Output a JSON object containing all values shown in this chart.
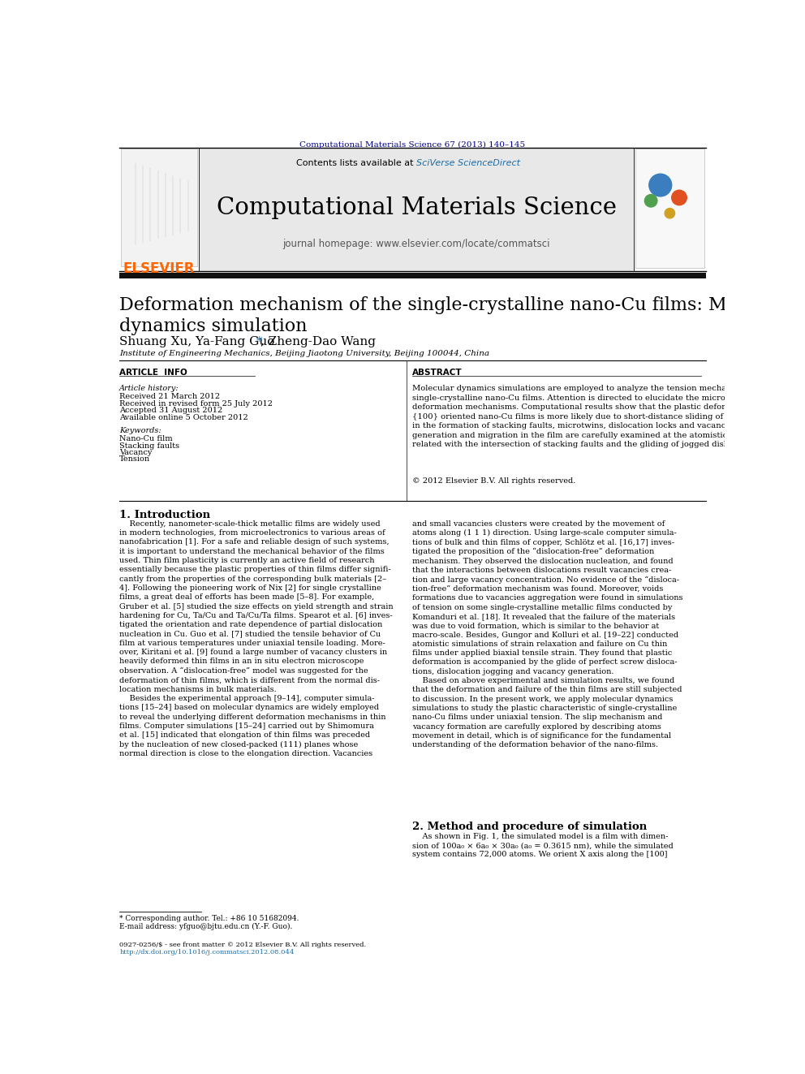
{
  "page_bg": "#ffffff",
  "top_journal_ref": "Computational Materials Science 67 (2013) 140–145",
  "top_journal_ref_color": "#00008B",
  "header_bg": "#e8e8e8",
  "header_contents_text": "Contents lists available at ",
  "header_sciverse": "SciVerse ScienceDirect",
  "header_sciverse_color": "#1a6ca8",
  "header_journal_title": "Computational Materials Science",
  "header_homepage_text": "journal homepage: www.elsevier.com/locate/commatsci",
  "article_title": "Deformation mechanism of the single-crystalline nano-Cu films: Molecular\ndynamics simulation",
  "affiliation": "Institute of Engineering Mechanics, Beijing Jiaotong University, Beijing 100044, China",
  "article_info_label": "ARTICLE  INFO",
  "abstract_label": "ABSTRACT",
  "article_history_label": "Article history:",
  "received_1": "Received 21 March 2012",
  "received_revised": "Received in revised form 25 July 2012",
  "accepted": "Accepted 31 August 2012",
  "available": "Available online 5 October 2012",
  "keywords_label": "Keywords:",
  "keyword_1": "Nano-Cu film",
  "keyword_2": "Stacking faults",
  "keyword_3": "Vacancy",
  "keyword_4": "Tension",
  "abstract_text": "Molecular dynamics simulations are employed to analyze the tension mechanical properties of\nsingle-crystalline nano-Cu films. Attention is directed to elucidate the microstructure evolution and\ndeformation mechanisms. Computational results show that the plastic deformation mechanism of the\n{100} oriented nano-Cu films is more likely due to short-distance sliding of the atoms, which results\nin the formation of stacking faults, microtwins, dislocation locks and vacancies. In particular, vacancy\ngeneration and migration in the film are carefully examined at the atomistic scale, which is closely\nrelated with the intersection of stacking faults and the gliding of jogged dislocations.\n© 2012 Elsevier B.V. All rights reserved.",
  "section1_title": "1. Introduction",
  "section1_col1": "    Recently, nanometer-scale-thick metallic films are widely used\nin modern technologies, from microelectronics to various areas of\nnanofabrication [1]. For a safe and reliable design of such systems,\nit is important to understand the mechanical behavior of the films\nused. Thin film plasticity is currently an active field of research\nessentially because the plastic properties of thin films differ signifi-\ncantly from the properties of the corresponding bulk materials [2–\n4]. Following the pioneering work of Nix [2] for single crystalline\nfilms, a great deal of efforts has been made [5–8]. For example,\nGruber et al. [5] studied the size effects on yield strength and strain\nhardening for Cu, Ta/Cu and Ta/Cu/Ta films. Spearot et al. [6] inves-\ntigated the orientation and rate dependence of partial dislocation\nnucleation in Cu. Guo et al. [7] studied the tensile behavior of Cu\nfilm at various temperatures under uniaxial tensile loading. More-\nover, Kiritani et al. [9] found a large number of vacancy clusters in\nheavily deformed thin films in an in situ electron microscope\nobservation. A “dislocation-free” model was suggested for the\ndeformation of thin films, which is different from the normal dis-\nlocation mechanisms in bulk materials.\n    Besides the experimental approach [9–14], computer simula-\ntions [15–24] based on molecular dynamics are widely employed\nto reveal the underlying different deformation mechanisms in thin\nfilms. Computer simulations [15–24] carried out by Shimomura\net al. [15] indicated that elongation of thin films was preceded\nby the nucleation of new closed-packed (111) planes whose\nnormal direction is close to the elongation direction. Vacancies",
  "section1_col2": "and small vacancies clusters were created by the movement of\natoms along (1 1 1) direction. Using large-scale computer simula-\ntions of bulk and thin films of copper, Schlötz et al. [16,17] inves-\ntigated the proposition of the “dislocation-free” deformation\nmechanism. They observed the dislocation nucleation, and found\nthat the interactions between dislocations result vacancies crea-\ntion and large vacancy concentration. No evidence of the “disloca-\ntion-free” deformation mechanism was found. Moreover, voids\nformations due to vacancies aggregation were found in simulations\nof tension on some single-crystalline metallic films conducted by\nKomanduri et al. [18]. It revealed that the failure of the materials\nwas due to void formation, which is similar to the behavior at\nmacro-scale. Besides, Gungor and Kolluri et al. [19–22] conducted\natomistic simulations of strain relaxation and failure on Cu thin\nfilms under applied biaxial tensile strain. They found that plastic\ndeformation is accompanied by the glide of perfect screw disloca-\ntions, dislocation jogging and vacancy generation.\n    Based on above experimental and simulation results, we found\nthat the deformation and failure of the thin films are still subjected\nto discussion. In the present work, we apply molecular dynamics\nsimulations to study the plastic characteristic of single-crystalline\nnano-Cu films under uniaxial tension. The slip mechanism and\nvacancy formation are carefully explored by describing atoms\nmovement in detail, which is of significance for the fundamental\nunderstanding of the deformation behavior of the nano-films.",
  "section2_title": "2. Method and procedure of simulation",
  "section2_text": "    As shown in Fig. 1, the simulated model is a film with dimen-\nsion of 100a₀ × 6a₀ × 30a₀ (a₀ = 0.3615 nm), while the simulated\nsystem contains 72,000 atoms. We orient X axis along the [100]",
  "footnote_star": "* Corresponding author. Tel.: +86 10 51682094.",
  "footnote_email": "E-mail address: yfguo@bjtu.edu.cn (Y.-F. Guo).",
  "footer_issn": "0927-0256/$ - see front matter © 2012 Elsevier B.V. All rights reserved.",
  "footer_doi": "http://dx.doi.org/10.1016/j.commatsci.2012.08.044"
}
